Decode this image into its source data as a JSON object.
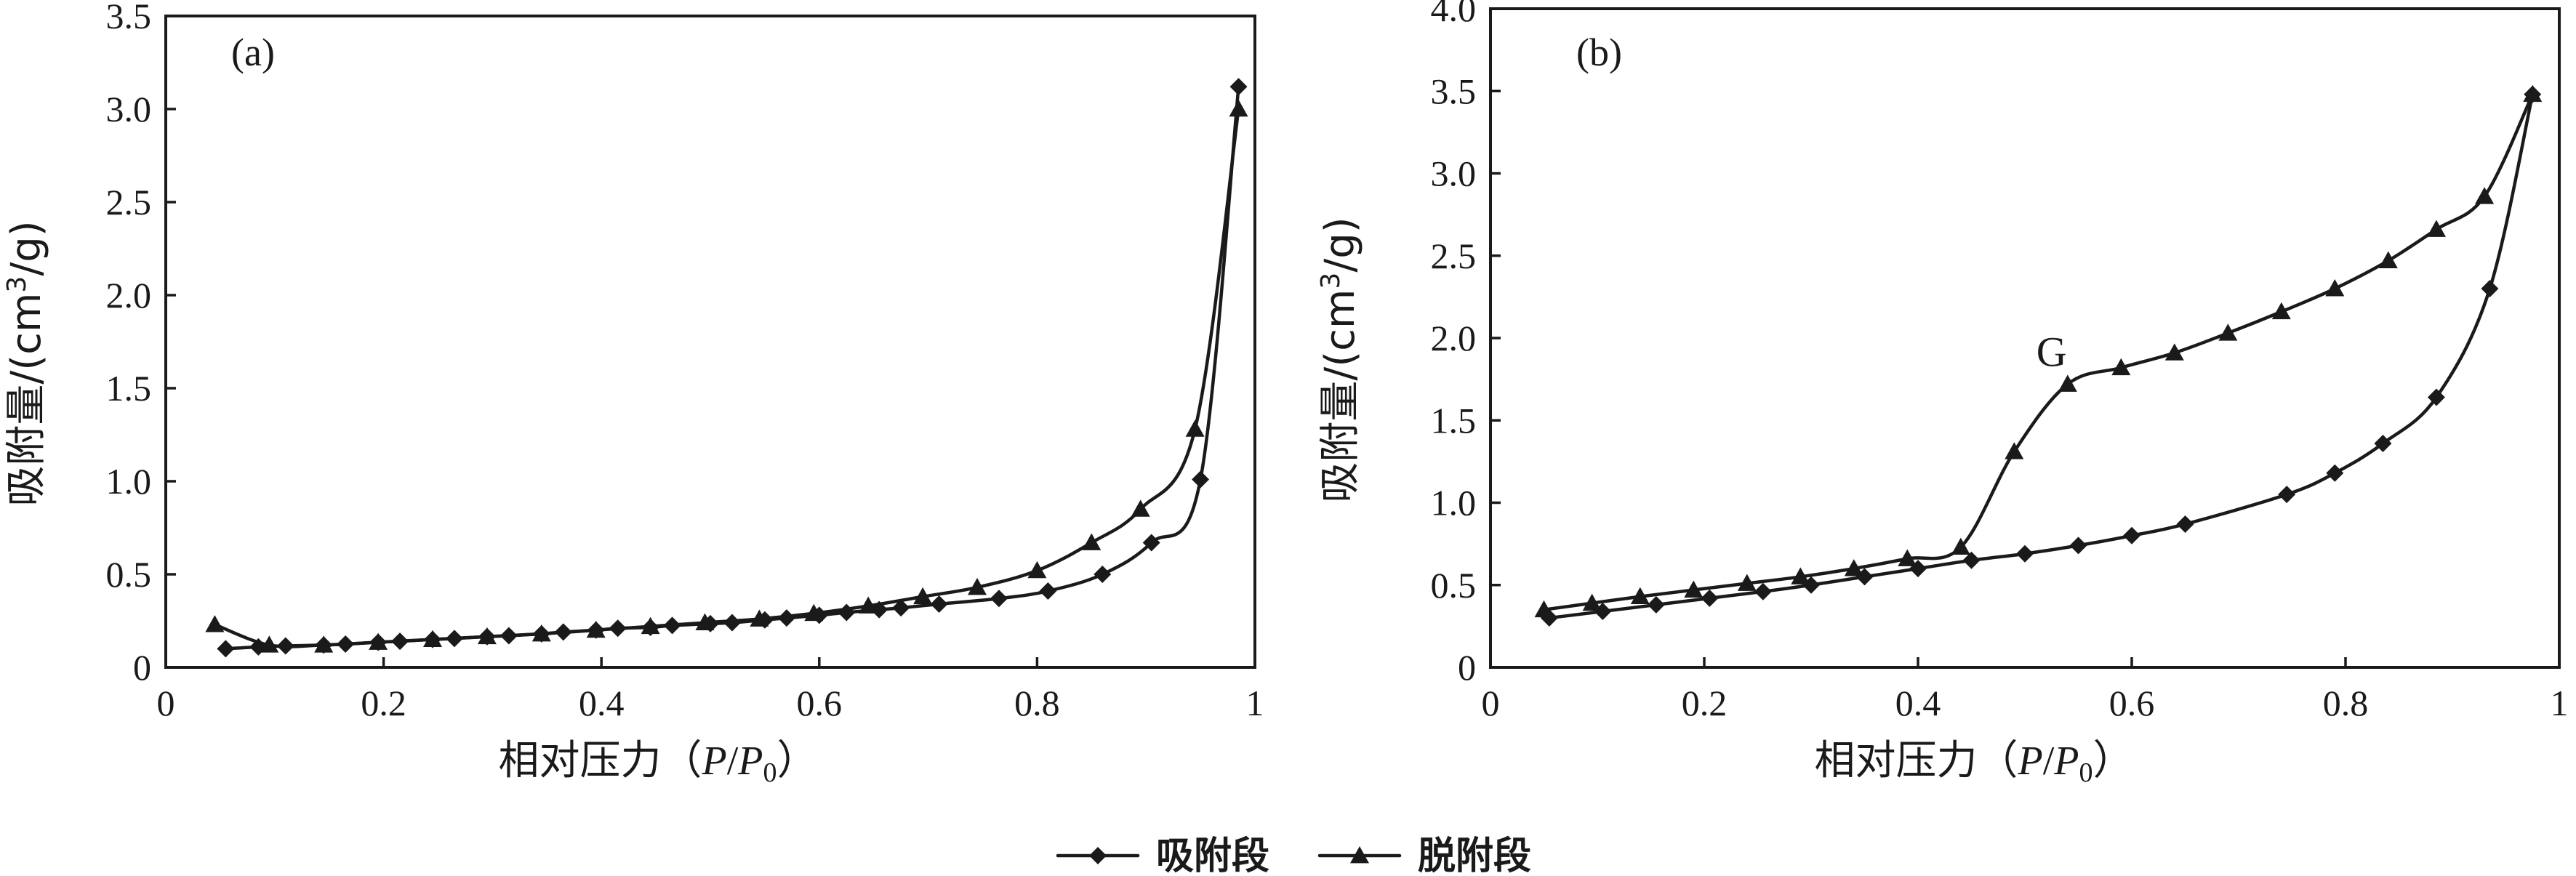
{
  "chart_data": [
    {
      "type": "line",
      "panel_label": "(a)",
      "ylabel": "吸附量/(cm³/g)",
      "xlabel": "相对压力（P/P₀）",
      "xlabel_parts": [
        "相对压力（",
        "P",
        "/",
        "P",
        "0",
        "）"
      ],
      "ylabel_parts": [
        "吸附量/(cm",
        "3",
        "/g)"
      ],
      "xlim": [
        0,
        1
      ],
      "ylim": [
        0,
        3.5
      ],
      "xticks": [
        0,
        0.2,
        0.4,
        0.6,
        0.8,
        1
      ],
      "xtick_labels": [
        "0",
        "0.2",
        "0.4",
        "0.6",
        "0.8",
        "1"
      ],
      "yticks": [
        0,
        0.5,
        1.0,
        1.5,
        2.0,
        2.5,
        3.0,
        3.5
      ],
      "ytick_labels": [
        "0",
        "0.5",
        "1.0",
        "1.5",
        "2.0",
        "2.5",
        "3.0",
        "3.5"
      ],
      "annotation": null,
      "series": [
        {
          "name": "吸附段",
          "marker": "diamond",
          "x": [
            0.055,
            0.085,
            0.11,
            0.145,
            0.165,
            0.195,
            0.215,
            0.245,
            0.265,
            0.295,
            0.315,
            0.345,
            0.365,
            0.395,
            0.415,
            0.445,
            0.465,
            0.5,
            0.52,
            0.55,
            0.57,
            0.6,
            0.625,
            0.655,
            0.675,
            0.71,
            0.765,
            0.81,
            0.86,
            0.905,
            0.95,
            0.985
          ],
          "y": [
            0.1,
            0.11,
            0.115,
            0.12,
            0.125,
            0.135,
            0.14,
            0.15,
            0.155,
            0.165,
            0.17,
            0.18,
            0.19,
            0.2,
            0.21,
            0.215,
            0.225,
            0.235,
            0.24,
            0.255,
            0.265,
            0.28,
            0.295,
            0.31,
            0.32,
            0.34,
            0.37,
            0.41,
            0.5,
            0.67,
            1.01,
            3.12
          ]
        },
        {
          "name": "脱附段",
          "marker": "triangle",
          "x": [
            0.045,
            0.095,
            0.145,
            0.195,
            0.245,
            0.295,
            0.345,
            0.395,
            0.445,
            0.495,
            0.545,
            0.595,
            0.645,
            0.695,
            0.745,
            0.8,
            0.85,
            0.895,
            0.945,
            0.985
          ],
          "y": [
            0.23,
            0.12,
            0.12,
            0.135,
            0.15,
            0.165,
            0.18,
            0.2,
            0.22,
            0.24,
            0.26,
            0.29,
            0.33,
            0.38,
            0.43,
            0.52,
            0.67,
            0.85,
            1.28,
            3.0
          ]
        }
      ]
    },
    {
      "type": "line",
      "panel_label": "(b)",
      "ylabel": "吸附量/(cm³/g)",
      "xlabel": "相对压力（P/P₀）",
      "xlabel_parts": [
        "相对压力（",
        "P",
        "/",
        "P",
        "0",
        "）"
      ],
      "ylabel_parts": [
        "吸附量/(cm",
        "3",
        "/g)"
      ],
      "xlim": [
        0,
        1
      ],
      "ylim": [
        0,
        4.0
      ],
      "xticks": [
        0,
        0.2,
        0.4,
        0.6,
        0.8,
        1
      ],
      "xtick_labels": [
        "0",
        "0.2",
        "0.4",
        "0.6",
        "0.8",
        "1"
      ],
      "yticks": [
        0,
        0.5,
        1.0,
        1.5,
        2.0,
        2.5,
        3.0,
        3.5,
        4.0
      ],
      "ytick_labels": [
        "0",
        "0.5",
        "1.0",
        "1.5",
        "2.0",
        "2.5",
        "3.0",
        "3.5",
        "4.0"
      ],
      "annotation": {
        "text": "G",
        "x": 0.525,
        "y": 1.83
      },
      "series": [
        {
          "name": "吸附段",
          "marker": "diamond",
          "x": [
            0.055,
            0.105,
            0.155,
            0.205,
            0.255,
            0.3,
            0.35,
            0.4,
            0.45,
            0.5,
            0.55,
            0.6,
            0.65,
            0.745,
            0.79,
            0.835,
            0.885,
            0.935,
            0.975
          ],
          "y": [
            0.3,
            0.34,
            0.38,
            0.42,
            0.46,
            0.5,
            0.55,
            0.6,
            0.65,
            0.69,
            0.74,
            0.8,
            0.87,
            1.05,
            1.18,
            1.36,
            1.64,
            2.3,
            3.48
          ]
        },
        {
          "name": "脱附段",
          "marker": "triangle",
          "x": [
            0.05,
            0.095,
            0.14,
            0.19,
            0.24,
            0.29,
            0.34,
            0.39,
            0.44,
            0.49,
            0.54,
            0.59,
            0.64,
            0.69,
            0.74,
            0.79,
            0.84,
            0.885,
            0.93,
            0.975
          ],
          "y": [
            0.35,
            0.39,
            0.43,
            0.47,
            0.51,
            0.55,
            0.6,
            0.66,
            0.73,
            1.31,
            1.72,
            1.82,
            1.91,
            2.03,
            2.16,
            2.3,
            2.47,
            2.66,
            2.86,
            3.48
          ]
        }
      ]
    }
  ],
  "legend": {
    "position": "bottom-center",
    "items": [
      {
        "label": "吸附段",
        "marker": "diamond"
      },
      {
        "label": "脱附段",
        "marker": "triangle"
      }
    ]
  }
}
